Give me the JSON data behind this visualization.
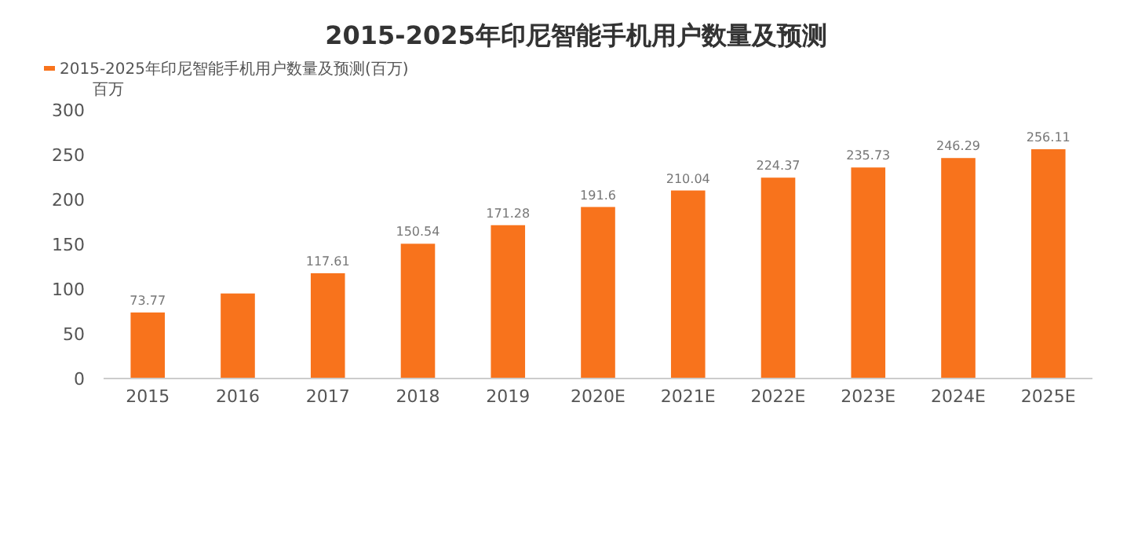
{
  "chart_data": {
    "type": "bar",
    "title": "2015-2025年印尼智能手机用户数量及预测",
    "ylabel": "百万",
    "categories": [
      "2015",
      "2016",
      "2017",
      "2018",
      "2019",
      "2020E",
      "2021E",
      "2022E",
      "2023E",
      "2024E",
      "2025E"
    ],
    "series": [
      {
        "name": "2015-2025年印尼智能手机用户数量及预测(百万)",
        "color": "#f8731c",
        "values": [
          73.77,
          95,
          117.61,
          150.54,
          171.28,
          191.6,
          210.04,
          224.37,
          235.73,
          246.29,
          256.11
        ],
        "value_labels": [
          "73.77",
          null,
          "117.61",
          "150.54",
          "171.28",
          "191.6",
          "210.04",
          "224.37",
          "235.73",
          "246.29",
          "256.11"
        ]
      }
    ],
    "ylim": [
      0,
      300
    ],
    "yticks": [
      0,
      50,
      100,
      150,
      200,
      250,
      300
    ],
    "grid": false,
    "legend": "top left"
  }
}
